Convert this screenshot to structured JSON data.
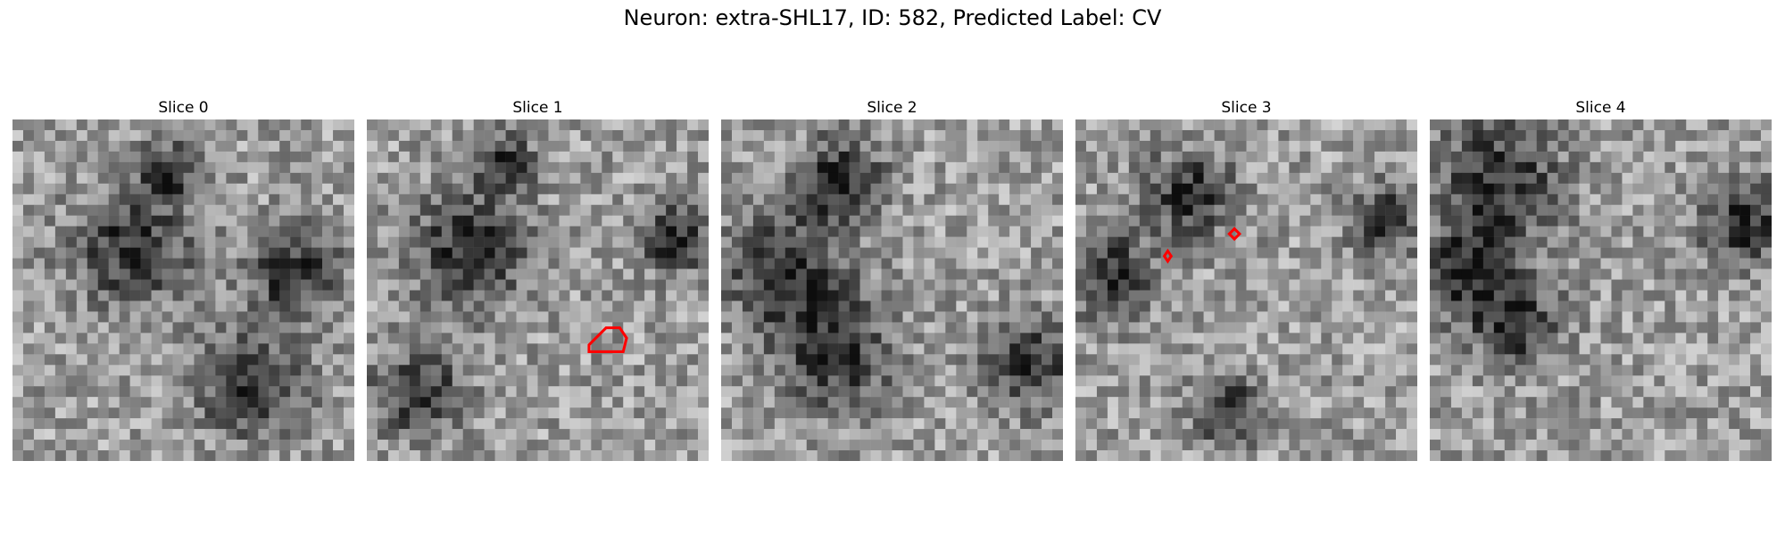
{
  "figure": {
    "title": "Neuron: extra-SHL17, ID: 582, Predicted Label: CV"
  },
  "panels": [
    {
      "title": "Slice 0",
      "seed": 11,
      "dark_spots": [
        [
          0.82,
          0.45,
          0.16
        ],
        [
          0.7,
          0.78,
          0.18
        ],
        [
          0.35,
          0.38,
          0.2
        ],
        [
          0.45,
          0.15,
          0.1
        ]
      ],
      "contours": []
    },
    {
      "title": "Slice 1",
      "seed": 23,
      "dark_spots": [
        [
          0.4,
          0.12,
          0.1
        ],
        [
          0.3,
          0.38,
          0.2
        ],
        [
          0.9,
          0.35,
          0.12
        ],
        [
          0.15,
          0.8,
          0.15
        ]
      ],
      "contours": [
        [
          [
            0.65,
            0.66
          ],
          [
            0.7,
            0.61
          ],
          [
            0.74,
            0.61
          ],
          [
            0.76,
            0.64
          ],
          [
            0.75,
            0.68
          ],
          [
            0.7,
            0.68
          ],
          [
            0.65,
            0.68
          ]
        ]
      ]
    },
    {
      "title": "Slice 2",
      "seed": 37,
      "dark_spots": [
        [
          0.18,
          0.44,
          0.2
        ],
        [
          0.35,
          0.18,
          0.15
        ],
        [
          0.33,
          0.68,
          0.2
        ],
        [
          0.9,
          0.72,
          0.15
        ]
      ],
      "contours": []
    },
    {
      "title": "Slice 3",
      "seed": 51,
      "dark_spots": [
        [
          0.33,
          0.22,
          0.15
        ],
        [
          0.1,
          0.45,
          0.15
        ],
        [
          0.9,
          0.3,
          0.12
        ],
        [
          0.45,
          0.85,
          0.12
        ]
      ],
      "contours": [
        [
          [
            0.26,
            0.4
          ],
          [
            0.27,
            0.385
          ],
          [
            0.28,
            0.4
          ],
          [
            0.27,
            0.415
          ]
        ],
        [
          [
            0.45,
            0.335
          ],
          [
            0.465,
            0.32
          ],
          [
            0.48,
            0.335
          ],
          [
            0.465,
            0.35
          ]
        ]
      ]
    },
    {
      "title": "Slice 4",
      "seed": 67,
      "dark_spots": [
        [
          0.2,
          0.18,
          0.22
        ],
        [
          0.1,
          0.45,
          0.15
        ],
        [
          0.25,
          0.6,
          0.15
        ],
        [
          0.92,
          0.3,
          0.15
        ]
      ],
      "contours": []
    }
  ],
  "colors": {
    "contour": "#ff0000"
  }
}
